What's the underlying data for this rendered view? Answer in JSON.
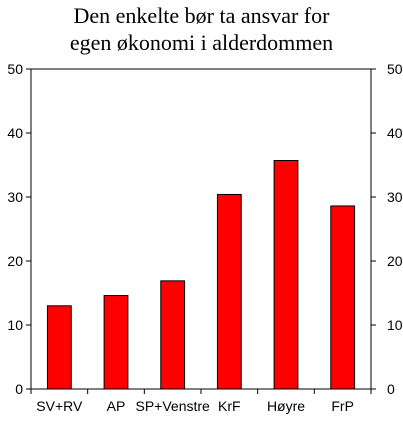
{
  "chart_data": {
    "type": "bar",
    "title": [
      "Den enkelte bør ta ansvar for",
      "egen økonomi i alderdommen"
    ],
    "xlabel": "",
    "ylabel": "",
    "categories": [
      "SV+RV",
      "AP",
      "SP+Venstre",
      "KrF",
      "Høyre",
      "FrP"
    ],
    "values": [
      13,
      14.6,
      16.9,
      30.4,
      35.7,
      28.6
    ],
    "ylim": [
      0,
      50
    ],
    "yticks": [
      0,
      10,
      20,
      30,
      40,
      50
    ],
    "secondary_y_axis": true,
    "grid": false,
    "legend": "none",
    "bar_color": "#ff0000",
    "bar_edge_color": "#000000"
  }
}
